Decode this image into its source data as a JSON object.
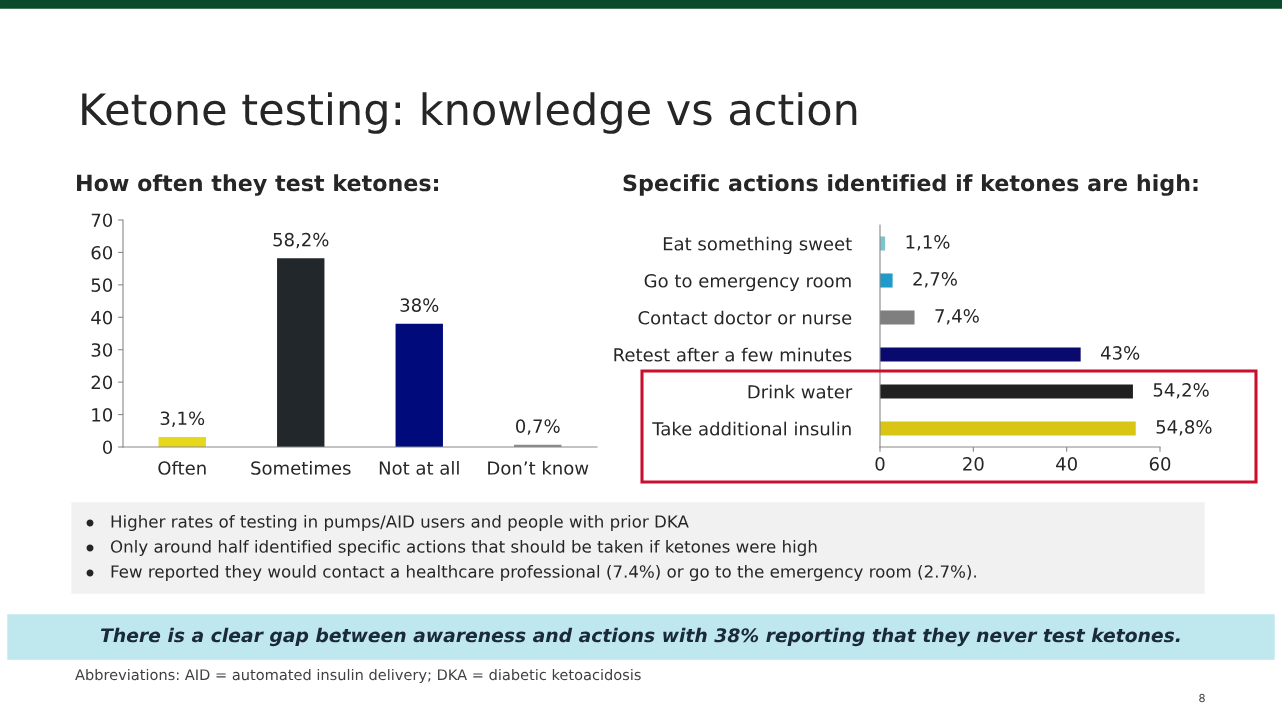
{
  "chart_data": [
    {
      "type": "bar",
      "title": "How often they test ketones:",
      "categories": [
        "Often",
        "Sometimes",
        "Not at all",
        "Don’t know"
      ],
      "values": [
        3.1,
        58.2,
        38,
        0.7
      ],
      "colors": [
        "#e8d81c",
        "#22272b",
        "#000a7a",
        "#8a8a8a"
      ],
      "value_labels": [
        "3,1%",
        "58,2%",
        "38%",
        "0,7%"
      ],
      "ylim": [
        0,
        70
      ],
      "yticks": [
        0,
        10,
        20,
        30,
        40,
        50,
        60,
        70
      ],
      "grid": false,
      "legend": false
    },
    {
      "type": "bar",
      "orientation": "horizontal",
      "title": "Specific actions identified if ketones are high:",
      "categories": [
        "Eat something sweet",
        "Go to emergency room",
        "Contact doctor or nurse",
        "Retest after a few minutes",
        "Drink water",
        "Take additional insulin"
      ],
      "values": [
        1.1,
        2.7,
        7.4,
        43,
        54.2,
        54.8
      ],
      "colors": [
        "#7ec4cf",
        "#1f9bc9",
        "#7f7f7f",
        "#0a0a6e",
        "#202020",
        "#d9c614"
      ],
      "value_labels": [
        "1,1%",
        "2,7%",
        "7,4%",
        "43%",
        "54,2%",
        "54,8%"
      ],
      "xlim": [
        0,
        60
      ],
      "xticks": [
        0,
        20,
        40,
        60
      ],
      "grid": false,
      "legend": false
    },
    {
      "type": "other",
      "title": "Ketone testing: knowledge vs action",
      "annotations": [
        "Higher rates of testing in pumps/AID users and people with prior DKA",
        "Only around half identified specific actions that should be taken if ketones were high",
        "Few reported they would contact a healthcare professional (7.4%) or go to the emergency room (2.7%).",
        "There is a clear gap between awareness and actions with 38% reporting that they never test ketones.",
        "Abbreviations: AID = automated insulin delivery; DKA = diabetic ketoacidosis",
        "8"
      ]
    }
  ]
}
